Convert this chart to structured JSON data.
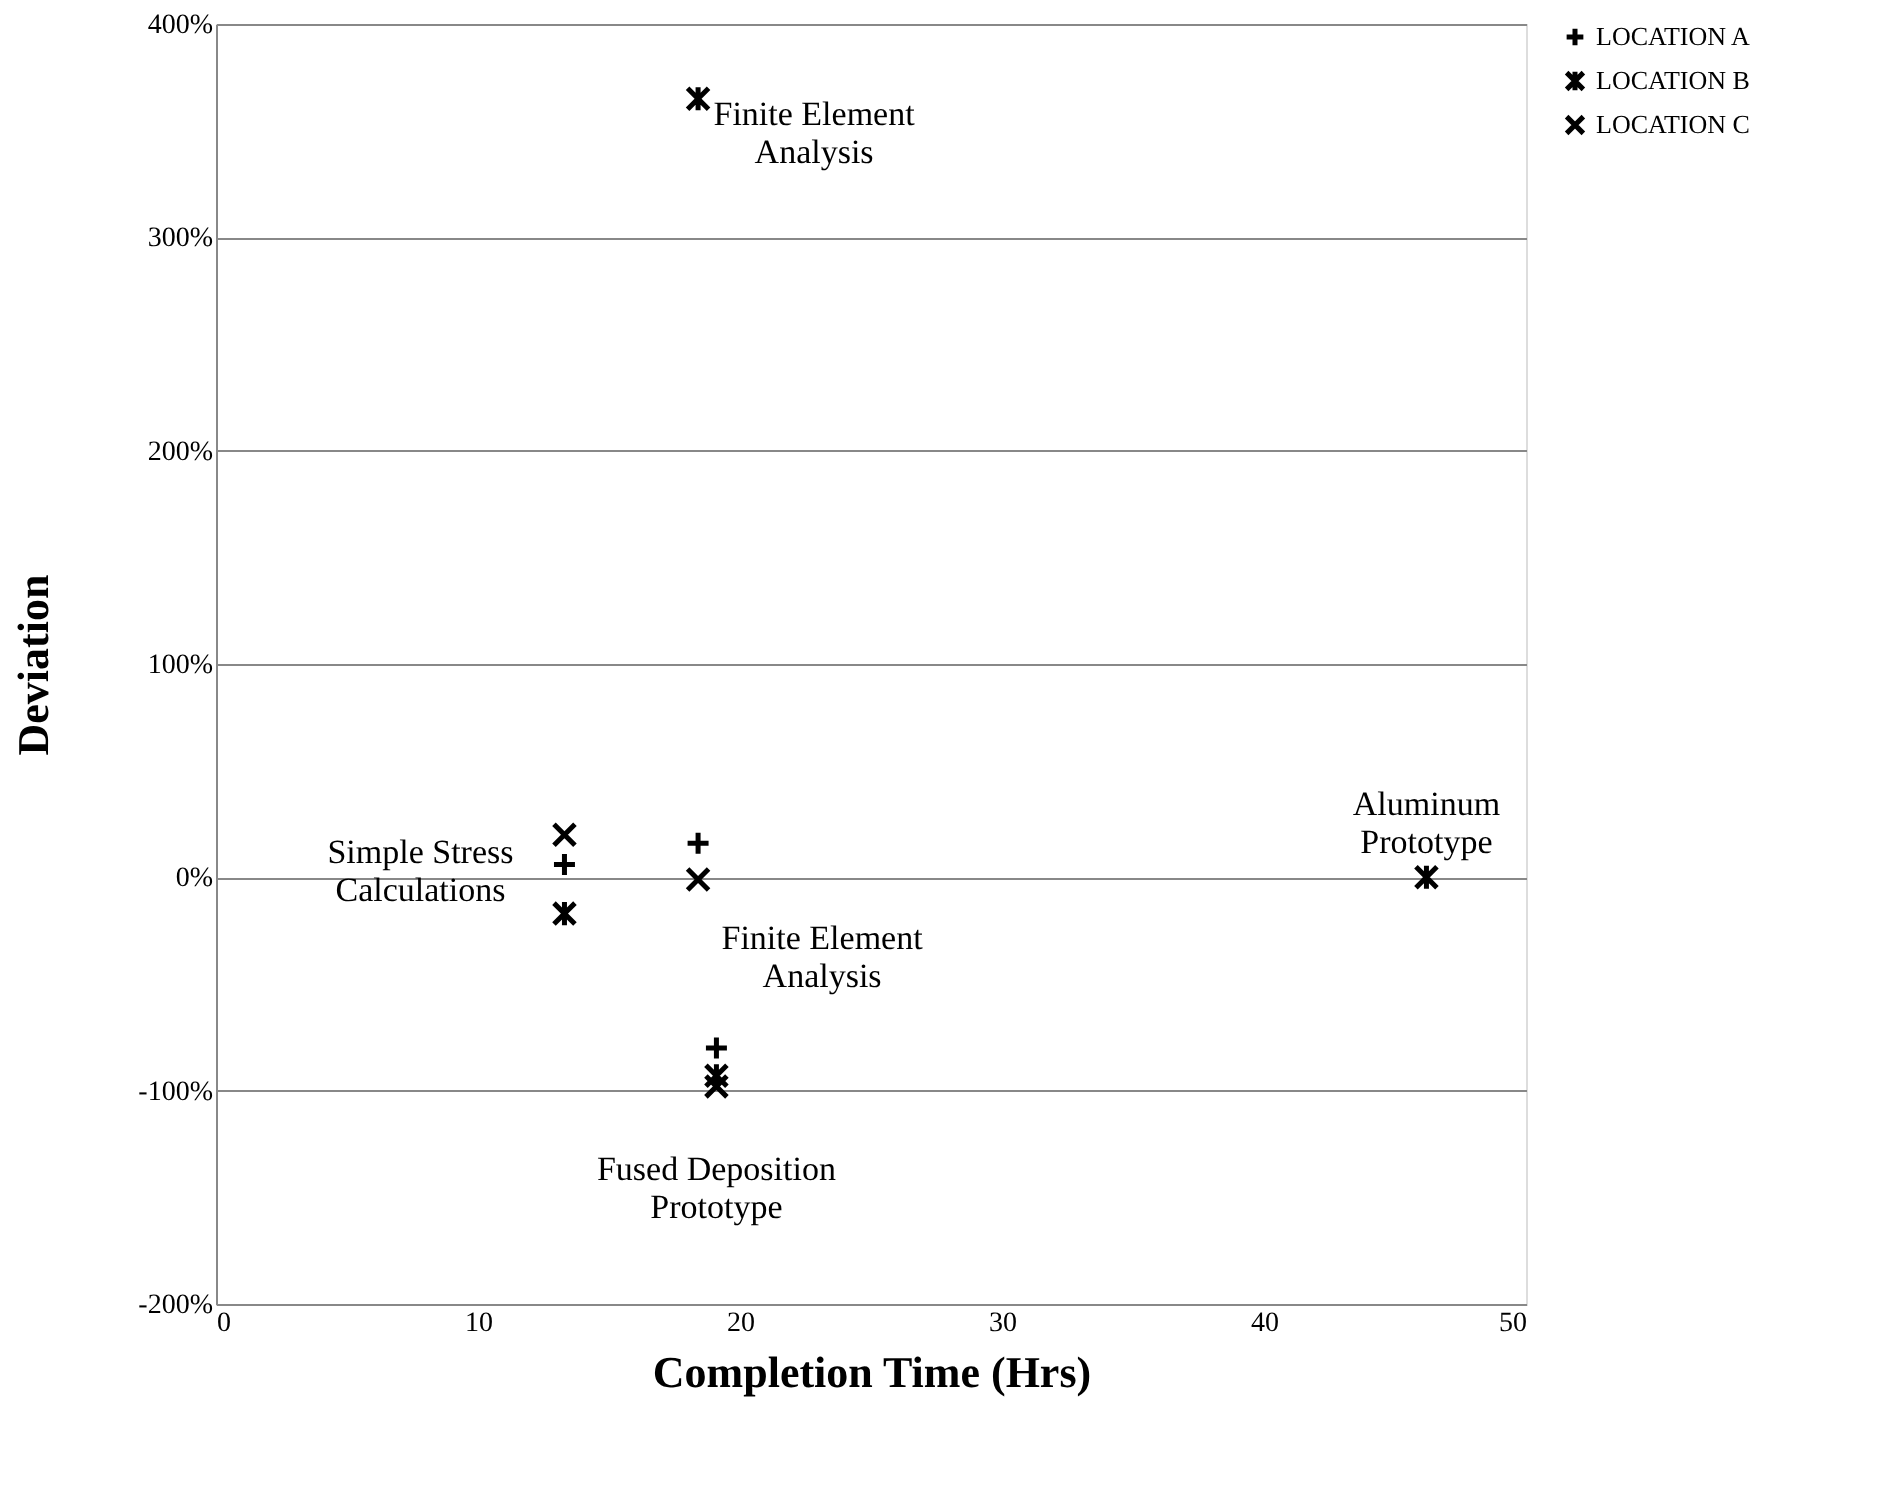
{
  "chart_data": {
    "type": "scatter",
    "xlabel": "Completion Time (Hrs)",
    "ylabel": "Deviation",
    "xlim": [
      0,
      50
    ],
    "xticks": [
      0,
      10,
      20,
      30,
      40,
      50
    ],
    "ylim": [
      -200,
      400
    ],
    "yticks": [
      {
        "value": -200,
        "label": "-200%"
      },
      {
        "value": -100,
        "label": "-100%"
      },
      {
        "value": 0,
        "label": "0%"
      },
      {
        "value": 100,
        "label": "100%"
      },
      {
        "value": 200,
        "label": "200%"
      },
      {
        "value": 300,
        "label": "300%"
      },
      {
        "value": 400,
        "label": "400%"
      }
    ],
    "grid": "y",
    "legend": "right",
    "series": [
      {
        "name": "LOCATION A",
        "color": "#000000",
        "marker": "cross",
        "x": [
          13.3,
          18.4,
          19.1
        ],
        "values": [
          6,
          16,
          -80
        ]
      },
      {
        "name": "LOCATION B",
        "color": "#000000",
        "x": [
          13.3,
          18.4,
          19.1,
          46.2
        ],
        "values": [
          -17,
          365,
          -93,
          0
        ]
      },
      {
        "name": "LOCATION C",
        "color": "#000000",
        "x": [
          13.3,
          18.4,
          19.1
        ],
        "values": [
          20,
          -1,
          -98
        ]
      }
    ],
    "annotations": [
      {
        "text": "Simple Stress\nCalculations",
        "x": 13.3,
        "y": 6
      },
      {
        "text": "Finite Element\nAnalysis",
        "x": 18.4,
        "y": 365
      },
      {
        "text": "Finite Element\nAnalysis",
        "x": 18.4,
        "y": -1
      },
      {
        "text": "Fused Deposition\nPrototype",
        "x": 19.1,
        "y": -98
      },
      {
        "text": "Aluminum\nPrototype",
        "x": 46.2,
        "y": 0
      }
    ]
  }
}
